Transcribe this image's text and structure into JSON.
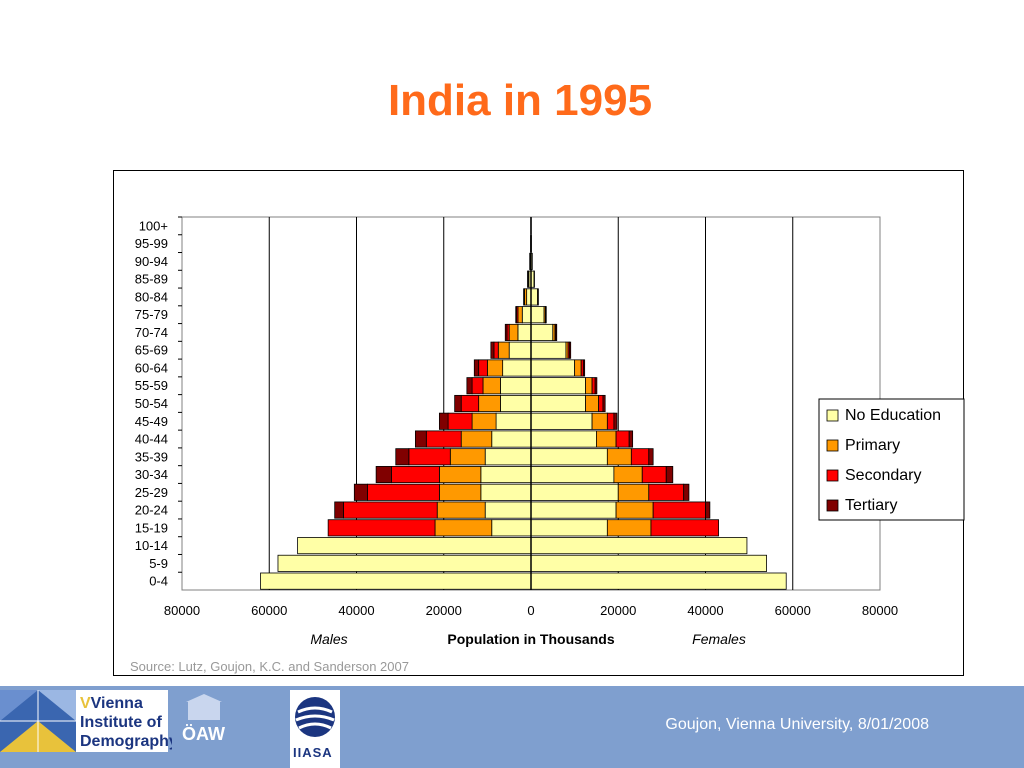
{
  "slide": {
    "title": "India in 1995",
    "source": "Source: Lutz, Goujon, K.C. and Sanderson 2007",
    "footer": "Goujon,  Vienna University, 8/01/2008"
  },
  "logos": {
    "vid": {
      "line1": "Vienna",
      "line2": "Institute of",
      "line3": "Demography"
    },
    "oaw": "ÖAW",
    "iiasa": "IIASA"
  },
  "colors": {
    "no_education": "#ffffa6",
    "primary": "#ff9900",
    "secondary": "#ff0000",
    "tertiary": "#800000",
    "title": "#ff6a1a",
    "footer_band": "#7f9fcf"
  },
  "chart_data": {
    "type": "bar",
    "orientation": "horizontal",
    "stacked": true,
    "xlabel": "Population in Thousands",
    "left_side_label": "Males",
    "right_side_label": "Females",
    "xlim": [
      -80000,
      80000
    ],
    "xticks": [
      "80000",
      "60000",
      "40000",
      "20000",
      "0",
      "20000",
      "40000",
      "60000",
      "80000"
    ],
    "grid": true,
    "legend_position": "right",
    "categories": [
      "0-4",
      "5-9",
      "10-14",
      "15-19",
      "20-24",
      "25-29",
      "30-34",
      "35-39",
      "40-44",
      "45-49",
      "50-54",
      "55-59",
      "60-64",
      "65-69",
      "70-74",
      "75-79",
      "80-84",
      "85-89",
      "90-94",
      "95-99",
      "100+"
    ],
    "series": [
      {
        "name": "No Education",
        "males": [
          62000,
          58000,
          53500,
          9000,
          10500,
          11500,
          11500,
          10500,
          9000,
          8000,
          7000,
          7000,
          6500,
          5000,
          3000,
          2000,
          1000,
          500,
          200,
          100,
          50
        ],
        "females": [
          58500,
          54000,
          49500,
          17500,
          19500,
          20000,
          19000,
          17500,
          15000,
          14000,
          12500,
          12500,
          10000,
          8000,
          5000,
          3000,
          1500,
          700,
          300,
          100,
          50
        ]
      },
      {
        "name": "Primary",
        "males": [
          0,
          0,
          0,
          13000,
          11000,
          9500,
          9500,
          8000,
          7000,
          5500,
          5000,
          4000,
          3500,
          2500,
          2000,
          1000,
          500,
          200,
          100,
          0,
          0
        ],
        "females": [
          0,
          0,
          0,
          10000,
          8500,
          7000,
          6500,
          5500,
          4500,
          3500,
          3000,
          1500,
          1500,
          500,
          500,
          300,
          200,
          100,
          0,
          0,
          0
        ]
      },
      {
        "name": "Secondary",
        "males": [
          0,
          0,
          0,
          24500,
          21500,
          16500,
          11000,
          9500,
          8000,
          5500,
          4000,
          2500,
          2000,
          1000,
          500,
          300,
          100,
          100,
          0,
          0,
          0
        ],
        "females": [
          0,
          0,
          0,
          15500,
          12000,
          8000,
          5500,
          4000,
          3000,
          1500,
          1000,
          700,
          500,
          300,
          200,
          100,
          0,
          0,
          0,
          0,
          0
        ]
      },
      {
        "name": "Tertiary",
        "males": [
          0,
          0,
          0,
          0,
          2000,
          3000,
          3500,
          3000,
          2500,
          2000,
          1500,
          1200,
          1000,
          700,
          400,
          200,
          100,
          0,
          0,
          0,
          0
        ],
        "females": [
          0,
          0,
          0,
          0,
          1000,
          1200,
          1500,
          1000,
          800,
          700,
          500,
          400,
          300,
          300,
          200,
          100,
          0,
          0,
          0,
          0,
          0
        ]
      }
    ]
  }
}
